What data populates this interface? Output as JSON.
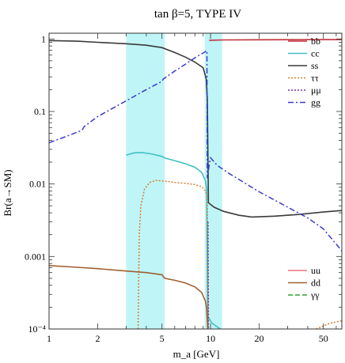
{
  "chart_data": {
    "type": "line",
    "title": "tan β=5, TYPE IV",
    "xlabel": "m_a [GeV]",
    "ylabel": "Br(a→SM)",
    "xscale": "log",
    "yscale": "log",
    "xlim": [
      1,
      65
    ],
    "ylim": [
      0.0001,
      1.2
    ],
    "grid": false,
    "x_ticks": [
      {
        "value": 1,
        "label": "1"
      },
      {
        "value": 2,
        "label": "2"
      },
      {
        "value": 5,
        "label": "5"
      },
      {
        "value": 10,
        "label": "10"
      },
      {
        "value": 20,
        "label": "20"
      },
      {
        "value": 50,
        "label": "50"
      }
    ],
    "y_ticks": [
      {
        "value": 1,
        "label": "1"
      },
      {
        "value": 0.1,
        "label": "0.1"
      },
      {
        "value": 0.01,
        "label": "0.01"
      },
      {
        "value": 0.001,
        "label": "0.001"
      },
      {
        "value": 0.0001,
        "label": "10⁻⁴"
      }
    ],
    "shaded_bands": [
      {
        "x": [
          3.0,
          5.2
        ],
        "color": "#bff5f7"
      },
      {
        "x": [
          9.2,
          11.8
        ],
        "color": "#bff5f7"
      }
    ],
    "series": [
      {
        "name": "bb",
        "color": "#c0303a",
        "dash": "solid",
        "x": [
          9.8,
          12,
          20,
          30,
          40,
          50,
          65
        ],
        "y": [
          0.96,
          0.97,
          0.975,
          0.977,
          0.978,
          0.979,
          0.98
        ]
      },
      {
        "name": "cc",
        "color": "#40c0c4",
        "dash": "solid",
        "x": [
          3.0,
          3.4,
          3.8,
          4.3,
          5.0,
          5.2,
          6.0,
          7.0,
          8.0,
          8.8,
          9.3,
          9.45,
          9.6,
          10.2,
          11.5
        ],
        "y": [
          0.025,
          0.027,
          0.027,
          0.026,
          0.024,
          0.0228,
          0.021,
          0.019,
          0.017,
          0.0145,
          0.011,
          0.0085,
          0.00015,
          0.00012,
          0.0001
        ]
      },
      {
        "name": "ss",
        "color": "#3a3a3a",
        "dash": "solid",
        "x": [
          1,
          1.5,
          2,
          3,
          4,
          5,
          6,
          7,
          8,
          9,
          9.4,
          9.55,
          9.7,
          10.5,
          12,
          15,
          18,
          25,
          35,
          50,
          65
        ],
        "y": [
          0.95,
          0.93,
          0.9,
          0.86,
          0.82,
          0.76,
          0.65,
          0.56,
          0.48,
          0.4,
          0.28,
          0.15,
          0.0055,
          0.0048,
          0.0042,
          0.0037,
          0.0035,
          0.0036,
          0.0038,
          0.0041,
          0.0043
        ]
      },
      {
        "name": "ττ",
        "color": "#d88030",
        "dash": "dot",
        "x": [
          3.56,
          3.62,
          3.7,
          3.9,
          4.2,
          4.6,
          5.0,
          5.5,
          6.0,
          7.0,
          8.0,
          8.8,
          9.3,
          9.55,
          9.65
        ],
        "y": [
          0.0001,
          0.002,
          0.005,
          0.0085,
          0.0105,
          0.0112,
          0.011,
          0.0108,
          0.0105,
          0.0102,
          0.0098,
          0.0092,
          0.008,
          0.0065,
          0.0001
        ]
      },
      {
        "name": "μμ",
        "color": "#7030a0",
        "dash": "dot",
        "x": [
          9.65,
          9.7
        ],
        "y": [
          0.003,
          0.0001
        ]
      },
      {
        "name": "gg",
        "color": "#3a3acc",
        "dash": "dashdot",
        "x": [
          1,
          1.3,
          1.6,
          1.65,
          2,
          3,
          4,
          5,
          5.1,
          6,
          7,
          8,
          9,
          9.5,
          9.55,
          9.8,
          10,
          11,
          13,
          20,
          30,
          40,
          50,
          65
        ],
        "y": [
          0.037,
          0.046,
          0.055,
          0.062,
          0.085,
          0.14,
          0.2,
          0.26,
          0.28,
          0.36,
          0.45,
          0.55,
          0.64,
          0.69,
          0.012,
          0.018,
          0.023,
          0.018,
          0.014,
          0.0078,
          0.0048,
          0.0034,
          0.0024,
          0.0012
        ]
      },
      {
        "name": "uu",
        "color": "#f07080",
        "dash": "solid",
        "x": [],
        "y": []
      },
      {
        "name": "dd",
        "color": "#a06030",
        "dash": "solid",
        "x": [
          1,
          1.5,
          2,
          3,
          4,
          5,
          5.2,
          6,
          7,
          8,
          8.8,
          9.3,
          9.45,
          9.6
        ],
        "y": [
          0.00075,
          0.00071,
          0.00068,
          0.00063,
          0.0006,
          0.00056,
          0.0005,
          0.00047,
          0.00043,
          0.00038,
          0.00032,
          0.00024,
          0.00019,
          0.0001
        ]
      },
      {
        "name": "γγ",
        "color": "#30a030",
        "dash": "dash",
        "x": [],
        "y": []
      }
    ],
    "tail_curve": {
      "name": "ττ",
      "x": [
        45,
        50,
        55,
        60,
        65
      ],
      "y": [
        0.0001,
        0.00011,
        0.00012,
        0.000125,
        0.00013
      ]
    },
    "legends": [
      {
        "placement": "top-right",
        "entries": [
          "bb",
          "cc",
          "ss",
          "ττ",
          "μμ",
          "gg"
        ]
      },
      {
        "placement": "bottom-right",
        "entries": [
          "uu",
          "dd",
          "γγ"
        ]
      }
    ]
  }
}
